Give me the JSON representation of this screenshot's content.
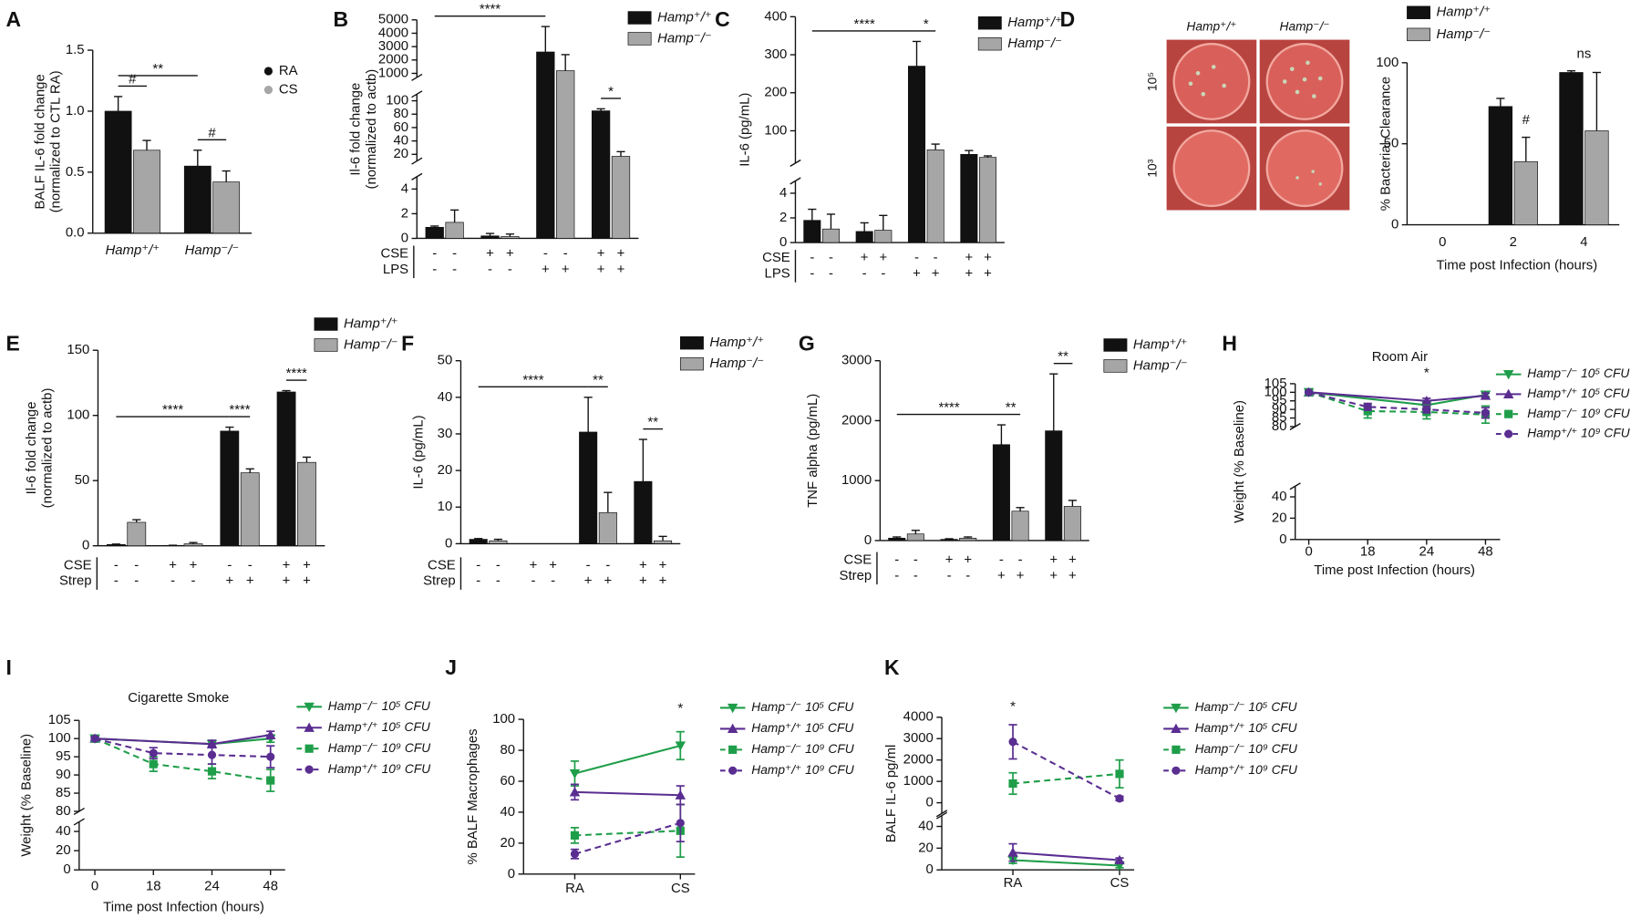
{
  "chart_data": [
    {
      "type": "bar",
      "panel": "A",
      "ylabel": [
        "BALF IL-6 fold change",
        "(normalized to CTL RA)"
      ],
      "categories": [
        "Hamp⁺/⁺",
        "Hamp⁻/⁻"
      ],
      "series": [
        {
          "name": "RA",
          "color": "#111111",
          "values": [
            1.0,
            0.55
          ],
          "errors": [
            0.12,
            0.13
          ]
        },
        {
          "name": "CS",
          "color": "#a6a6a6",
          "values": [
            0.68,
            0.42
          ],
          "errors": [
            0.08,
            0.09
          ]
        }
      ],
      "ylim": [
        0,
        1.5
      ],
      "yticks": [
        {
          "value": 0,
          "label": "0.0"
        },
        {
          "value": 0.5,
          "label": "0.5"
        },
        {
          "value": 1,
          "label": "1.0"
        },
        {
          "value": 1.5,
          "label": "1.5"
        }
      ],
      "legend_marker": "circle",
      "annotations": [
        {
          "text": "#",
          "from": 0,
          "to": 1
        },
        {
          "text": "#",
          "from": 2,
          "to": 3
        },
        {
          "text": "**",
          "from": 0,
          "to": 2
        }
      ]
    },
    {
      "type": "bar",
      "panel": "B",
      "ylabel": [
        "Il-6 fold change",
        "(normalized to actb)"
      ],
      "series": [
        {
          "name": "Hamp⁺/⁺",
          "color": "#111111",
          "values": [
            0.9,
            0.2,
            2600,
            85
          ],
          "errors": [
            0.1,
            0.2,
            1900,
            3
          ]
        },
        {
          "name": "Hamp⁻/⁻",
          "color": "#a6a6a6",
          "values": [
            1.3,
            0.15,
            1200,
            17
          ],
          "errors": [
            1.0,
            0.2,
            1200,
            7
          ]
        }
      ],
      "axis_segments": [
        {
          "ylim": [
            0,
            5
          ],
          "yticks": [
            0,
            2,
            4
          ]
        },
        {
          "ylim": [
            10,
            110
          ],
          "yticks": [
            20,
            40,
            60,
            80,
            100
          ]
        },
        {
          "ylim": [
            700,
            5000
          ],
          "yticks": [
            1000,
            2000,
            3000,
            4000,
            5000
          ]
        }
      ],
      "treatments": [
        {
          "name": "CSE",
          "signs": [
            "-",
            "-",
            "+",
            "+",
            "-",
            "-",
            "+",
            "+"
          ]
        },
        {
          "name": "LPS",
          "signs": [
            "-",
            "-",
            "-",
            "-",
            "+",
            "+",
            "+",
            "+"
          ]
        }
      ],
      "legend_marker": "square",
      "annotations": [
        {
          "text": "****",
          "from": 0,
          "to": 4
        },
        {
          "text": "*",
          "from": 6,
          "to": 7
        }
      ]
    },
    {
      "type": "bar",
      "panel": "C",
      "ylabel": [
        "IL-6 (pg/mL)"
      ],
      "series": [
        {
          "name": "Hamp⁺/⁺",
          "color": "#111111",
          "values": [
            1.8,
            0.9,
            270,
            38
          ],
          "errors": [
            0.9,
            0.7,
            65,
            10
          ]
        },
        {
          "name": "Hamp⁻/⁻",
          "color": "#a6a6a6",
          "values": [
            1.1,
            1.0,
            50,
            30
          ],
          "errors": [
            1.2,
            1.2,
            15,
            4
          ]
        }
      ],
      "axis_segments": [
        {
          "ylim": [
            0,
            5
          ],
          "yticks": [
            0,
            2,
            4
          ]
        },
        {
          "ylim": [
            15,
            400
          ],
          "yticks": [
            100,
            200,
            300,
            400
          ]
        }
      ],
      "treatments": [
        {
          "name": "CSE",
          "signs": [
            "-",
            "-",
            "+",
            "+",
            "-",
            "-",
            "+",
            "+"
          ]
        },
        {
          "name": "LPS",
          "signs": [
            "-",
            "-",
            "-",
            "-",
            "+",
            "+",
            "+",
            "+"
          ]
        }
      ],
      "legend_marker": "square",
      "annotations": [
        {
          "text": "****",
          "from": 0,
          "to": 4
        },
        {
          "text": "*",
          "from": 4,
          "to": 5
        }
      ]
    },
    {
      "type": "bar",
      "panel": "D",
      "image_labels": {
        "columns": [
          "Hamp⁺/⁺",
          "Hamp⁻/⁻"
        ],
        "rows": [
          "10⁵",
          "10³"
        ]
      },
      "ylabel": [
        "% Bacterial Clearance"
      ],
      "xlabel": "Time post Infection (hours)",
      "categories": [
        "0",
        "2",
        "4"
      ],
      "series": [
        {
          "name": "Hamp⁺/⁺",
          "color": "#111111",
          "values": [
            0,
            73,
            94
          ],
          "errors": [
            null,
            5,
            1
          ]
        },
        {
          "name": "Hamp⁻/⁻",
          "color": "#a6a6a6",
          "values": [
            0,
            39,
            58
          ],
          "errors": [
            null,
            15,
            36
          ]
        }
      ],
      "ylim": [
        0,
        100
      ],
      "yticks": [
        0,
        50,
        100
      ],
      "legend_marker": "square",
      "annotations": [
        {
          "text": "#",
          "from": 3,
          "to": 3
        },
        {
          "text": "ns",
          "from": 4,
          "to": 5,
          "line": false
        }
      ]
    },
    {
      "type": "bar",
      "panel": "E",
      "ylabel": [
        "Il-6 fold change",
        "(normalized to actb)"
      ],
      "series": [
        {
          "name": "Hamp⁺/⁺",
          "color": "#111111",
          "values": [
            1,
            0.3,
            88,
            118
          ],
          "errors": [
            0.3,
            0.1,
            3,
            1
          ]
        },
        {
          "name": "Hamp⁻/⁻",
          "color": "#a6a6a6",
          "values": [
            18,
            1.5,
            56,
            64
          ],
          "errors": [
            2,
            1,
            3,
            4
          ]
        }
      ],
      "ylim": [
        0,
        150
      ],
      "yticks": [
        0,
        50,
        100,
        150
      ],
      "treatments": [
        {
          "name": "CSE",
          "signs": [
            "-",
            "-",
            "+",
            "+",
            "-",
            "-",
            "+",
            "+"
          ]
        },
        {
          "name": "Strep",
          "signs": [
            "-",
            "-",
            "-",
            "-",
            "+",
            "+",
            "+",
            "+"
          ]
        }
      ],
      "legend_marker": "square",
      "annotations": [
        {
          "text": "****",
          "from": 0,
          "to": 4
        },
        {
          "text": "****",
          "from": 4,
          "to": 5
        },
        {
          "text": "****",
          "from": 6,
          "to": 7
        }
      ]
    },
    {
      "type": "bar",
      "panel": "F",
      "ylabel": [
        "IL-6 (pg/mL)"
      ],
      "series": [
        {
          "name": "Hamp⁺/⁺",
          "color": "#111111",
          "values": [
            1.2,
            0,
            30.5,
            17
          ],
          "errors": [
            0.2,
            null,
            9.5,
            11.5
          ]
        },
        {
          "name": "Hamp⁻/⁻",
          "color": "#a6a6a6",
          "values": [
            0.8,
            0,
            8.5,
            0.8
          ],
          "errors": [
            0.4,
            null,
            5.5,
            1.2
          ]
        }
      ],
      "ylim": [
        0,
        50
      ],
      "yticks": [
        0,
        10,
        20,
        30,
        40,
        50
      ],
      "treatments": [
        {
          "name": "CSE",
          "signs": [
            "-",
            "-",
            "+",
            "+",
            "-",
            "-",
            "+",
            "+"
          ]
        },
        {
          "name": "Strep",
          "signs": [
            "-",
            "-",
            "-",
            "-",
            "+",
            "+",
            "+",
            "+"
          ]
        }
      ],
      "legend_marker": "square",
      "annotations": [
        {
          "text": "****",
          "from": 0,
          "to": 4
        },
        {
          "text": "**",
          "from": 4,
          "to": 5
        },
        {
          "text": "**",
          "from": 6,
          "to": 7
        }
      ]
    },
    {
      "type": "bar",
      "panel": "G",
      "ylabel": [
        "TNF alpha (pg/mL)"
      ],
      "series": [
        {
          "name": "Hamp⁺/⁺",
          "color": "#111111",
          "values": [
            40,
            20,
            1600,
            1830
          ],
          "errors": [
            20,
            10,
            330,
            950
          ]
        },
        {
          "name": "Hamp⁻/⁻",
          "color": "#a6a6a6",
          "values": [
            110,
            40,
            490,
            570
          ],
          "errors": [
            60,
            20,
            60,
            100
          ]
        }
      ],
      "ylim": [
        0,
        3000
      ],
      "yticks": [
        0,
        1000,
        2000,
        3000
      ],
      "treatments": [
        {
          "name": "CSE",
          "signs": [
            "-",
            "-",
            "+",
            "+",
            "-",
            "-",
            "+",
            "+"
          ]
        },
        {
          "name": "Strep",
          "signs": [
            "-",
            "-",
            "-",
            "-",
            "+",
            "+",
            "+",
            "+"
          ]
        }
      ],
      "legend_marker": "square",
      "annotations": [
        {
          "text": "****",
          "from": 0,
          "to": 4
        },
        {
          "text": "**",
          "from": 4,
          "to": 5
        },
        {
          "text": "**",
          "from": 6,
          "to": 7
        }
      ]
    },
    {
      "type": "line",
      "panel": "H",
      "title": "Room Air",
      "ylabel": [
        "Weight (% Baseline)"
      ],
      "xlabel": "Time post Infection (hours)",
      "xticks": [
        0,
        18,
        24,
        48
      ],
      "series": [
        {
          "name": "Hamp⁻/⁻ 10⁵ CFU",
          "color": "#1f9e4a",
          "marker": "triangle-down",
          "dashed": false,
          "x": [
            0,
            24,
            48
          ],
          "values": [
            100,
            92.5,
            98.5
          ],
          "errors": [
            0.5,
            1.5,
            1
          ]
        },
        {
          "name": "Hamp⁺/⁺ 10⁵ CFU",
          "color": "#5a2d91",
          "marker": "triangle-up",
          "dashed": false,
          "x": [
            0,
            24,
            48
          ],
          "values": [
            100,
            95,
            98
          ],
          "errors": [
            0.5,
            1.5,
            1.5
          ]
        },
        {
          "name": "Hamp⁻/⁻ 10⁹ CFU",
          "color": "#1f9e4a",
          "marker": "square",
          "dashed": true,
          "x": [
            0,
            18,
            24,
            48
          ],
          "values": [
            100,
            89,
            88.5,
            87
          ],
          "errors": [
            0.5,
            4,
            4,
            5
          ]
        },
        {
          "name": "Hamp⁺/⁺ 10⁹ CFU",
          "color": "#5a2d91",
          "marker": "circle",
          "dashed": true,
          "x": [
            0,
            18,
            24,
            48
          ],
          "values": [
            100,
            91.5,
            90,
            88
          ],
          "errors": [
            0.5,
            2,
            2,
            3
          ]
        }
      ],
      "axis_segments": [
        {
          "ylim": [
            0,
            50
          ],
          "yticks": [
            0,
            20,
            40
          ]
        },
        {
          "ylim": [
            80,
            105
          ],
          "yticks": [
            80,
            85,
            90,
            95,
            100,
            105
          ]
        }
      ],
      "annotations": [
        {
          "text": "*",
          "at": 24
        }
      ]
    },
    {
      "type": "line",
      "panel": "I",
      "title": "Cigarette Smoke",
      "ylabel": [
        "Weight (% Baseline)"
      ],
      "xlabel": "Time post Infection (hours)",
      "xticks": [
        0,
        18,
        24,
        48
      ],
      "series": [
        {
          "name": "Hamp⁻/⁻ 10⁵ CFU",
          "color": "#1f9e4a",
          "marker": "triangle-down",
          "dashed": false,
          "x": [
            0,
            24,
            48
          ],
          "values": [
            100,
            98.5,
            100
          ],
          "errors": [
            0.5,
            1,
            1
          ]
        },
        {
          "name": "Hamp⁺/⁺ 10⁵ CFU",
          "color": "#5a2d91",
          "marker": "triangle-up",
          "dashed": false,
          "x": [
            0,
            24,
            48
          ],
          "values": [
            100,
            98.5,
            101
          ],
          "errors": [
            0.5,
            1,
            1
          ]
        },
        {
          "name": "Hamp⁻/⁻ 10⁹ CFU",
          "color": "#1f9e4a",
          "marker": "square",
          "dashed": true,
          "x": [
            0,
            18,
            24,
            48
          ],
          "values": [
            100,
            93,
            91,
            88.5
          ],
          "errors": [
            0.5,
            2,
            2,
            3
          ]
        },
        {
          "name": "Hamp⁺/⁺ 10⁹ CFU",
          "color": "#5a2d91",
          "marker": "circle",
          "dashed": true,
          "x": [
            0,
            18,
            24,
            48
          ],
          "values": [
            100,
            96,
            95.5,
            95
          ],
          "errors": [
            0.5,
            1.5,
            2.5,
            3
          ]
        }
      ],
      "axis_segments": [
        {
          "ylim": [
            0,
            50
          ],
          "yticks": [
            0,
            20,
            40
          ]
        },
        {
          "ylim": [
            80,
            105
          ],
          "yticks": [
            80,
            85,
            90,
            95,
            100,
            105
          ]
        }
      ]
    },
    {
      "type": "line",
      "panel": "J",
      "ylabel": [
        "% BALF Macrophages"
      ],
      "categories": [
        "RA",
        "CS"
      ],
      "series": [
        {
          "name": "Hamp⁻/⁻ 10⁵ CFU",
          "color": "#1f9e4a",
          "marker": "triangle-down",
          "dashed": false,
          "values": [
            65,
            83
          ],
          "errors": [
            8,
            9
          ]
        },
        {
          "name": "Hamp⁺/⁺ 10⁵ CFU",
          "color": "#5a2d91",
          "marker": "triangle-up",
          "dashed": false,
          "values": [
            53,
            51
          ],
          "errors": [
            5,
            6
          ]
        },
        {
          "name": "Hamp⁻/⁻ 10⁹ CFU",
          "color": "#1f9e4a",
          "marker": "square",
          "dashed": true,
          "values": [
            25,
            28
          ],
          "errors": [
            5,
            17
          ]
        },
        {
          "name": "Hamp⁺/⁺ 10⁹ CFU",
          "color": "#5a2d91",
          "marker": "circle",
          "dashed": true,
          "values": [
            13,
            33
          ],
          "errors": [
            3,
            12
          ]
        }
      ],
      "ylim": [
        0,
        100
      ],
      "yticks": [
        0,
        20,
        40,
        60,
        80,
        100
      ],
      "annotations": [
        {
          "text": "*",
          "at": 1
        }
      ]
    },
    {
      "type": "line",
      "panel": "K",
      "ylabel": [
        "BALF IL-6 pg/ml"
      ],
      "categories": [
        "RA",
        "CS"
      ],
      "series": [
        {
          "name": "Hamp⁻/⁻ 10⁵ CFU",
          "color": "#1f9e4a",
          "marker": "triangle-down",
          "dashed": false,
          "values": [
            9,
            4
          ],
          "errors": [
            3,
            2
          ]
        },
        {
          "name": "Hamp⁺/⁺ 10⁵ CFU",
          "color": "#5a2d91",
          "marker": "triangle-up",
          "dashed": false,
          "values": [
            16,
            9
          ],
          "errors": [
            8,
            2
          ]
        },
        {
          "name": "Hamp⁻/⁻ 10⁹ CFU",
          "color": "#1f9e4a",
          "marker": "square",
          "dashed": true,
          "values": [
            900,
            1350
          ],
          "errors": [
            500,
            650
          ]
        },
        {
          "name": "Hamp⁺/⁺ 10⁹ CFU",
          "color": "#5a2d91",
          "marker": "circle",
          "dashed": true,
          "values": [
            2850,
            200
          ],
          "errors": [
            800,
            100
          ]
        }
      ],
      "axis_segments": [
        {
          "ylim": [
            0,
            50
          ],
          "yticks": [
            0,
            20,
            40
          ]
        },
        {
          "ylim": [
            -500,
            4000
          ],
          "yticks": [
            0,
            1000,
            2000,
            3000,
            4000
          ]
        }
      ],
      "annotations": [
        {
          "text": "*",
          "at": 0
        }
      ]
    }
  ]
}
